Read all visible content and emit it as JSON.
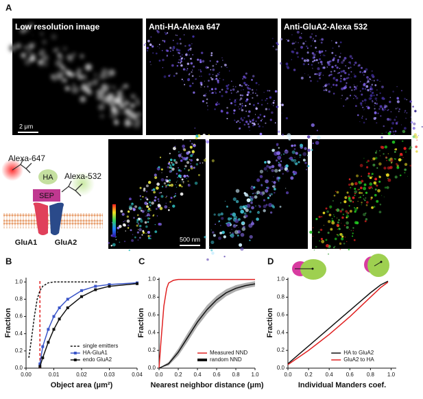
{
  "figure": {
    "panel_a": {
      "label": "A",
      "images": [
        "Low resolution image",
        "Anti-HA-Alexa 647",
        "Anti-GluA2-Alexa 532"
      ],
      "scale_bars": [
        "2 μm",
        "500 nm"
      ],
      "schematic": {
        "dyes": [
          "Alexa-647",
          "Alexa-532"
        ],
        "tag": "HA",
        "protein": "SEP",
        "subunits": [
          "GluA1",
          "GluA2"
        ]
      }
    }
  },
  "chart_data": [
    {
      "type": "line",
      "label": "B",
      "x_label": "Object area (μm²)",
      "y_label": "Fraction",
      "xlim": [
        0,
        0.04
      ],
      "ylim": [
        0,
        1.05
      ],
      "xticks": [
        {
          "value": 0,
          "label": "0.00"
        },
        {
          "value": 0.01,
          "label": "0.01"
        },
        {
          "value": 0.02,
          "label": "0.02"
        },
        {
          "value": 0.03,
          "label": "0.03"
        },
        {
          "value": 0.04,
          "label": "0.04"
        }
      ],
      "yticks": [
        {
          "value": 0,
          "label": "0.0"
        },
        {
          "value": 0.2,
          "label": "0.2"
        },
        {
          "value": 0.4,
          "label": "0.4"
        },
        {
          "value": 0.6,
          "label": "0.6"
        },
        {
          "value": 0.8,
          "label": "0.8"
        },
        {
          "value": 1,
          "label": "1.0"
        }
      ],
      "legend": "lower right",
      "vline": {
        "value": 0.005,
        "color": "#e02020"
      },
      "series": [
        {
          "name": "single emitters",
          "color": "#111111",
          "style": "dashed",
          "marker": null,
          "x": [
            0.001,
            0.002,
            0.003,
            0.004,
            0.005,
            0.006,
            0.008,
            0.01,
            0.026
          ],
          "values": [
            0.12,
            0.35,
            0.6,
            0.8,
            0.9,
            0.95,
            0.99,
            1.0,
            1.0
          ]
        },
        {
          "name": "HA-GluA1",
          "color": "#3a55c8",
          "style": "solid",
          "marker": "square",
          "x": [
            0.005,
            0.006,
            0.008,
            0.01,
            0.012,
            0.015,
            0.02,
            0.025,
            0.03,
            0.04
          ],
          "values": [
            0.05,
            0.25,
            0.45,
            0.6,
            0.7,
            0.8,
            0.9,
            0.95,
            0.97,
            0.99
          ]
        },
        {
          "name": "endo GluA2",
          "color": "#111111",
          "style": "solid",
          "marker": "square",
          "x": [
            0.005,
            0.006,
            0.008,
            0.01,
            0.012,
            0.015,
            0.02,
            0.025,
            0.03,
            0.04
          ],
          "values": [
            0.02,
            0.12,
            0.3,
            0.45,
            0.57,
            0.7,
            0.83,
            0.91,
            0.95,
            0.98
          ]
        }
      ]
    },
    {
      "type": "line",
      "label": "C",
      "x_label": "Nearest neighbor distance (μm)",
      "y_label": "Fraction",
      "xlim": [
        0,
        1
      ],
      "ylim": [
        0,
        1.02
      ],
      "xticks": [
        {
          "value": 0,
          "label": "0.0"
        },
        {
          "value": 0.2,
          "label": "0.2"
        },
        {
          "value": 0.4,
          "label": "0.4"
        },
        {
          "value": 0.6,
          "label": "0.6"
        },
        {
          "value": 0.8,
          "label": "0.8"
        },
        {
          "value": 1,
          "label": "1.0"
        }
      ],
      "yticks": [
        {
          "value": 0,
          "label": "0.0"
        },
        {
          "value": 0.2,
          "label": "0.2"
        },
        {
          "value": 0.4,
          "label": "0.4"
        },
        {
          "value": 0.6,
          "label": "0.6"
        },
        {
          "value": 0.8,
          "label": "0.8"
        },
        {
          "value": 1,
          "label": "1.0"
        }
      ],
      "legend": "lower right",
      "series": [
        {
          "name": "Measured NND",
          "color": "#e02020",
          "style": "solid",
          "marker": null,
          "x": [
            0,
            0.02,
            0.05,
            0.08,
            0.1,
            0.15,
            0.2,
            1.0
          ],
          "values": [
            0,
            0.3,
            0.7,
            0.9,
            0.96,
            0.99,
            1.0,
            1.0
          ]
        },
        {
          "name": "random NND",
          "color": "#111111",
          "style": "solid",
          "marker": null,
          "band_color": "#9a9a9a",
          "x": [
            0,
            0.1,
            0.2,
            0.3,
            0.4,
            0.5,
            0.6,
            0.7,
            0.8,
            0.9,
            1.0
          ],
          "values": [
            0,
            0.05,
            0.18,
            0.35,
            0.52,
            0.66,
            0.77,
            0.85,
            0.9,
            0.93,
            0.95
          ],
          "band": [
            0,
            0.02,
            0.04,
            0.05,
            0.05,
            0.05,
            0.045,
            0.04,
            0.035,
            0.03,
            0.03
          ]
        }
      ]
    },
    {
      "type": "line",
      "label": "D",
      "x_label": "Individual Manders coef.",
      "y_label": "Fraction",
      "xlim": [
        0,
        1.05
      ],
      "ylim": [
        0,
        1.02
      ],
      "xticks": [
        {
          "value": 0,
          "label": "0.0"
        },
        {
          "value": 0.2,
          "label": "0.2"
        },
        {
          "value": 0.4,
          "label": "0.4"
        },
        {
          "value": 0.6,
          "label": "0.6"
        },
        {
          "value": 0.8,
          "label": "0.8"
        },
        {
          "value": 1,
          "label": "1.0"
        }
      ],
      "yticks": [
        {
          "value": 0,
          "label": "0.0"
        },
        {
          "value": 0.2,
          "label": "0.2"
        },
        {
          "value": 0.4,
          "label": "0.4"
        },
        {
          "value": 0.6,
          "label": "0.6"
        },
        {
          "value": 0.8,
          "label": "0.8"
        },
        {
          "value": 1,
          "label": "1.0"
        }
      ],
      "legend": "lower right",
      "series": [
        {
          "name": "HA to GluA2",
          "color": "#111111",
          "style": "solid",
          "marker": null,
          "x": [
            0,
            0.1,
            0.2,
            0.3,
            0.4,
            0.5,
            0.6,
            0.7,
            0.8,
            0.9,
            0.97
          ],
          "values": [
            0.05,
            0.15,
            0.25,
            0.35,
            0.45,
            0.55,
            0.65,
            0.75,
            0.85,
            0.94,
            0.98
          ]
        },
        {
          "name": "GluA2 to HA",
          "color": "#e02020",
          "style": "solid",
          "marker": null,
          "x": [
            0,
            0.1,
            0.2,
            0.3,
            0.4,
            0.5,
            0.6,
            0.7,
            0.8,
            0.9,
            0.97
          ],
          "values": [
            0.04,
            0.12,
            0.2,
            0.29,
            0.38,
            0.48,
            0.58,
            0.69,
            0.8,
            0.91,
            0.97
          ]
        }
      ]
    }
  ]
}
